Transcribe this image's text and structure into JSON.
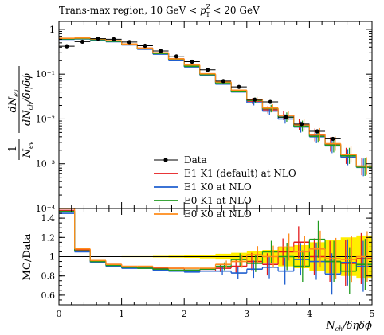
{
  "chart_data": [
    {
      "type": "line",
      "title": "Trans-max region, 10 GeV < p_T^Z < 20 GeV",
      "title_parts": {
        "main": "Trans-max region, 10 GeV < ",
        "var": "p",
        "sub": "T",
        "sup": "Z",
        "tail": " < 20 GeV"
      },
      "ylabel_parts": {
        "frac": "1",
        "den_main": "N",
        "den_sub": "ev",
        "num2": "dN",
        "num2_sub": "ev",
        "den2": "dN",
        "den2_sub": "ch",
        "den2_tail": "/δηδϕ"
      },
      "yscale": "log",
      "ylim": [
        0.0001,
        1.5
      ],
      "y_ticklabels": [
        "1",
        "10⁻¹",
        "10⁻²",
        "10⁻³",
        "10⁻⁴"
      ],
      "bin_edges": [
        0,
        0.25,
        0.5,
        0.75,
        1.0,
        1.25,
        1.5,
        1.75,
        2.0,
        2.25,
        2.5,
        2.75,
        3.0,
        3.25,
        3.5,
        3.75,
        4.0,
        4.25,
        4.5,
        4.75,
        5.0
      ],
      "data": {
        "name": "Data",
        "x": [
          0.125,
          0.375,
          0.625,
          0.875,
          1.125,
          1.375,
          1.625,
          1.875,
          2.125,
          2.375,
          2.625,
          2.875,
          3.125,
          3.375,
          3.625,
          3.875,
          4.125,
          4.375
        ],
        "y": [
          0.42,
          0.53,
          0.62,
          0.6,
          0.52,
          0.43,
          0.33,
          0.25,
          0.19,
          0.125,
          0.07,
          0.052,
          0.027,
          0.024,
          0.011,
          0.0077,
          0.0053,
          0.0036
        ],
        "color": "#000000"
      },
      "series": [
        {
          "name": "E1 K1 (default) at NLO",
          "color": "#e41a1c",
          "values": [
            0.62,
            0.63,
            0.6,
            0.55,
            0.47,
            0.38,
            0.3,
            0.22,
            0.155,
            0.1,
            0.066,
            0.043,
            0.025,
            0.016,
            0.012,
            0.0074,
            0.0044,
            0.0027,
            0.0015,
            0.00087
          ]
        },
        {
          "name": "E1 K0 at NLO",
          "color": "#1f5fcf",
          "values": [
            0.6,
            0.61,
            0.58,
            0.53,
            0.45,
            0.36,
            0.28,
            0.2,
            0.145,
            0.095,
            0.06,
            0.04,
            0.023,
            0.015,
            0.01,
            0.0066,
            0.004,
            0.0025,
            0.0014,
            0.00083
          ]
        },
        {
          "name": "E0 K1 at NLO",
          "color": "#1f9a1f",
          "values": [
            0.61,
            0.62,
            0.59,
            0.54,
            0.46,
            0.37,
            0.29,
            0.21,
            0.15,
            0.098,
            0.064,
            0.042,
            0.026,
            0.017,
            0.011,
            0.0069,
            0.0041,
            0.0026,
            0.0015,
            0.00084
          ]
        },
        {
          "name": "E0 K0 at NLO",
          "color": "#ff8c1a",
          "values": [
            0.63,
            0.64,
            0.61,
            0.56,
            0.47,
            0.38,
            0.3,
            0.22,
            0.16,
            0.102,
            0.067,
            0.044,
            0.027,
            0.0175,
            0.012,
            0.0075,
            0.0045,
            0.0028,
            0.0016,
            0.00089
          ]
        }
      ],
      "legend": {
        "placement": "lower-center",
        "entries": [
          "Data",
          "E1 K1 (default) at NLO",
          "E1 K0 at NLO",
          "E0 K1 at NLO",
          "E0 K0 at NLO"
        ]
      }
    },
    {
      "type": "line",
      "ylabel": "MC/Data",
      "xlabel_parts": {
        "main": "N",
        "sub": "ch",
        "tail": "/δηδϕ"
      },
      "xlim": [
        0,
        5
      ],
      "x_ticklabels": [
        "0",
        "1",
        "2",
        "3",
        "4",
        "5"
      ],
      "ylim": [
        0.5,
        1.5
      ],
      "y_ticks": [
        0.6,
        0.8,
        1,
        1.2,
        1.4
      ],
      "y_ticklabels": [
        "0.6",
        "0.8",
        "1",
        "1.2",
        "1.4"
      ],
      "uncertainty_band": {
        "color": "#ffee00",
        "half_width": [
          0,
          0,
          0,
          0,
          0.005,
          0.005,
          0.008,
          0.01,
          0.012,
          0.018,
          0.03,
          0.04,
          0.06,
          0.07,
          0.1,
          0.12,
          0.15,
          0.17,
          0.2,
          0.22
        ]
      },
      "series": [
        {
          "name": "E1 K1 (default) at NLO",
          "color": "#e41a1c",
          "values": [
            1.48,
            1.07,
            0.95,
            0.92,
            0.89,
            0.89,
            0.88,
            0.88,
            0.86,
            0.85,
            0.88,
            0.9,
            0.95,
            0.92,
            1.05,
            1.15,
            1.0,
            0.95,
            0.93,
            0.98
          ]
        },
        {
          "name": "E1 K0 at NLO",
          "color": "#1f5fcf",
          "values": [
            1.45,
            1.05,
            0.94,
            0.9,
            0.88,
            0.88,
            0.86,
            0.85,
            0.84,
            0.85,
            0.85,
            0.83,
            0.87,
            0.89,
            0.85,
            0.97,
            0.95,
            0.82,
            0.94,
            0.9
          ]
        },
        {
          "name": "E0 K1 at NLO",
          "color": "#1f9a1f",
          "values": [
            1.47,
            1.06,
            0.95,
            0.91,
            0.89,
            0.88,
            0.87,
            0.86,
            0.86,
            0.87,
            0.9,
            0.97,
            0.93,
            1.05,
            1.0,
            0.9,
            1.18,
            0.95,
            0.85,
            0.92
          ]
        },
        {
          "name": "E0 K0 at NLO",
          "color": "#ff8c1a",
          "values": [
            1.5,
            1.08,
            0.96,
            0.92,
            0.9,
            0.9,
            0.89,
            0.88,
            0.88,
            0.88,
            0.92,
            0.95,
            1.02,
            1.0,
            1.1,
            1.05,
            1.08,
            0.98,
            0.97,
            1.0
          ]
        }
      ]
    }
  ]
}
